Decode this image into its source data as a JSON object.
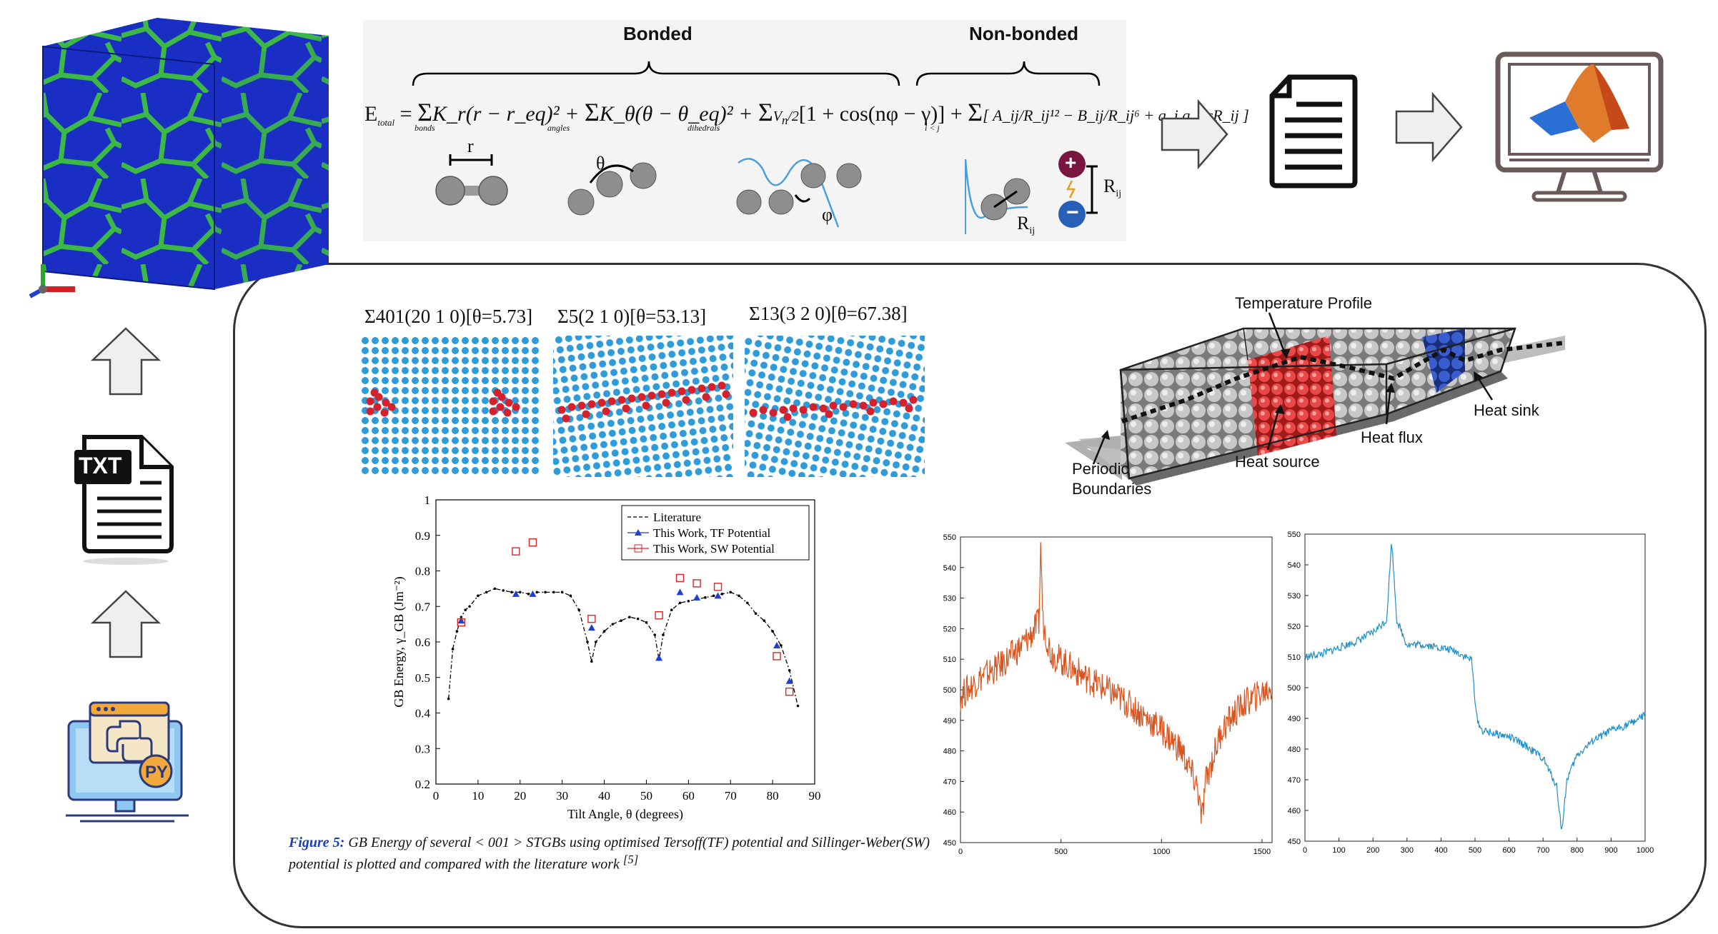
{
  "energy": {
    "bonded_label": "Bonded",
    "nonbonded_label": "Non-bonded",
    "eq_lhs": "E",
    "eq_lhs_sub": "total",
    "eq_equals": "=",
    "term_bonds": "K_r(r − r_eq)² +",
    "term_angles": "K_θ(θ − θ_eq)² +",
    "term_dihedrals": "[1 + cos(nφ − γ)] +",
    "term_nonbonded": "[ A_ij/R_ij¹² − B_ij/R_ij⁶ + q_i q_j/εR_ij ]",
    "sub_bonds": "bonds",
    "sub_angles": "angles",
    "sub_dihedrals": "dihedrals",
    "sub_pairs": "i < j",
    "sym_r": "r",
    "sym_theta": "θ",
    "sym_phi": "φ",
    "sym_rij": "R",
    "sym_rij_sub": "ij",
    "plus": "+",
    "minus": "−"
  },
  "icons": {
    "txt_label": "TXT",
    "py_label": "PY"
  },
  "gb_panels": [
    {
      "title": "Σ401(20 1 0)[θ=5.73]"
    },
    {
      "title": "Σ5(2 1 0)[θ=53.13]"
    },
    {
      "title": "Σ13(3 2 0)[θ=67.38]"
    }
  ],
  "md_schematic": {
    "temperature_profile": "Temperature Profile",
    "heat_sink": "Heat sink",
    "heat_flux": "Heat flux",
    "heat_source": "Heat source",
    "periodic": "Periodic",
    "boundaries": "Boundaries"
  },
  "figure_caption": {
    "label": "Figure 5:",
    "text": " GB Energy of several < 001 > STGBs using optimised Tersoff(TF) potential and Sillinger-Weber(SW) potential is plotted and compared with the literature work ",
    "ref": "[5]"
  },
  "chart_data": [
    {
      "type": "scatter",
      "xlabel": "Tilt Angle, θ (degrees)",
      "ylabel": "GB Energy, γ_GB (Jm⁻²)",
      "xlim": [
        0,
        90
      ],
      "ylim": [
        0.2,
        1.0
      ],
      "xticks": [
        0,
        10,
        20,
        30,
        40,
        50,
        60,
        70,
        80,
        90
      ],
      "yticks": [
        0.2,
        0.3,
        0.4,
        0.5,
        0.6,
        0.7,
        0.8,
        0.9,
        1
      ],
      "legend_position": "top-right",
      "series": [
        {
          "name": "Literature",
          "style": "dash-dot",
          "color": "#000000",
          "x": [
            3,
            4,
            5,
            6,
            7,
            8,
            10,
            12,
            14,
            16,
            18,
            20,
            22,
            24,
            26,
            28,
            30,
            32,
            34,
            36,
            37,
            38,
            40,
            42,
            44,
            46,
            48,
            50,
            52,
            53,
            54,
            56,
            58,
            60,
            62,
            64,
            66,
            68,
            70,
            72,
            74,
            76,
            78,
            80,
            82,
            84,
            86
          ],
          "y": [
            0.44,
            0.58,
            0.63,
            0.67,
            0.69,
            0.7,
            0.73,
            0.74,
            0.75,
            0.745,
            0.74,
            0.74,
            0.735,
            0.74,
            0.74,
            0.74,
            0.74,
            0.73,
            0.69,
            0.6,
            0.545,
            0.6,
            0.63,
            0.65,
            0.66,
            0.67,
            0.665,
            0.655,
            0.62,
            0.55,
            0.62,
            0.69,
            0.71,
            0.715,
            0.72,
            0.725,
            0.73,
            0.735,
            0.74,
            0.73,
            0.71,
            0.68,
            0.66,
            0.63,
            0.59,
            0.52,
            0.42
          ]
        },
        {
          "name": "This Work, TF Potential",
          "style": "triangle",
          "color": "#1f3fcf",
          "x": [
            6,
            19,
            23,
            37,
            53,
            58,
            62,
            67,
            81,
            84
          ],
          "y": [
            0.66,
            0.735,
            0.735,
            0.64,
            0.555,
            0.74,
            0.725,
            0.73,
            0.59,
            0.49
          ]
        },
        {
          "name": "This Work, SW Potential",
          "style": "square",
          "color": "#d62728",
          "x": [
            6,
            19,
            23,
            37,
            53,
            58,
            62,
            67,
            81,
            84
          ],
          "y": [
            0.655,
            0.855,
            0.88,
            0.665,
            0.675,
            0.78,
            0.765,
            0.755,
            0.56,
            0.46
          ]
        }
      ]
    },
    {
      "type": "line",
      "color": "#d9541e",
      "xlim": [
        0,
        1550
      ],
      "ylim": [
        450,
        550
      ],
      "xticks": [
        0,
        500,
        1000,
        1500
      ],
      "yticks": [
        450,
        460,
        470,
        480,
        490,
        500,
        510,
        520,
        530,
        540,
        550
      ],
      "x": [
        0,
        100,
        200,
        300,
        350,
        390,
        400,
        410,
        450,
        600,
        800,
        1000,
        1100,
        1180,
        1200,
        1220,
        1300,
        1400,
        1550
      ],
      "y": [
        498,
        504,
        508,
        514,
        518,
        522,
        548,
        522,
        512,
        505,
        497,
        487,
        480,
        468,
        457,
        470,
        487,
        495,
        501
      ]
    },
    {
      "type": "line",
      "color": "#1f8fc8",
      "xlim": [
        0,
        1000
      ],
      "ylim": [
        450,
        550
      ],
      "xticks": [
        0,
        100,
        200,
        300,
        400,
        500,
        600,
        700,
        800,
        900,
        1000
      ],
      "yticks": [
        450,
        460,
        470,
        480,
        490,
        500,
        510,
        520,
        530,
        540,
        550
      ],
      "x": [
        0,
        50,
        100,
        150,
        200,
        240,
        255,
        270,
        300,
        350,
        400,
        440,
        490,
        505,
        520,
        560,
        600,
        650,
        700,
        740,
        755,
        770,
        800,
        850,
        900,
        950,
        1000
      ],
      "y": [
        510,
        511,
        513,
        515,
        518,
        522,
        548,
        522,
        514,
        514,
        513,
        512,
        509,
        490,
        486,
        485,
        484,
        481,
        477,
        468,
        453,
        470,
        478,
        483,
        486,
        488,
        491
      ]
    }
  ]
}
